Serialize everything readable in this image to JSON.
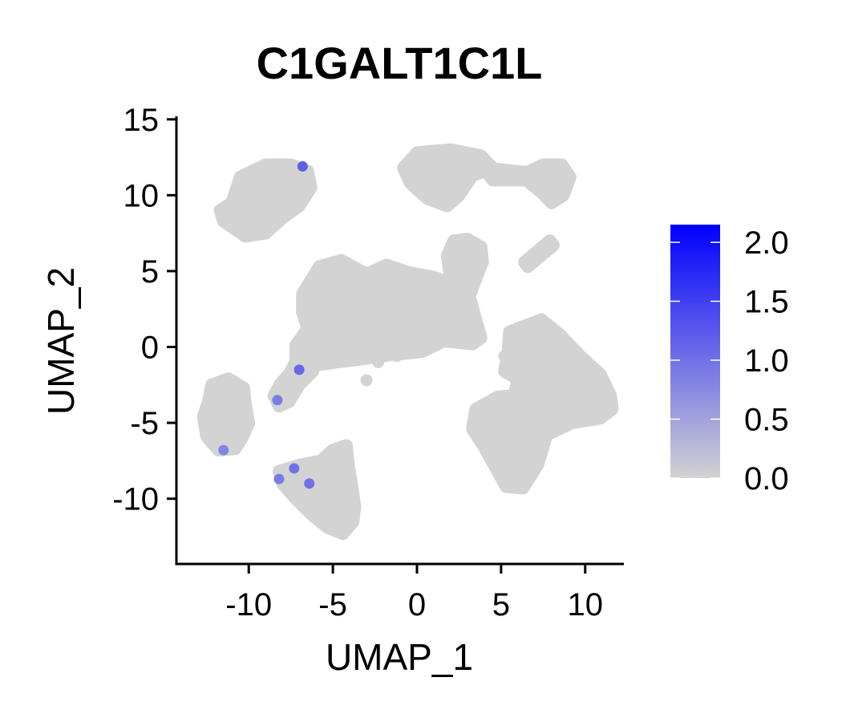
{
  "chart_data": {
    "type": "scatter",
    "title": "C1GALT1C1L",
    "xlabel": "UMAP_1",
    "ylabel": "UMAP_2",
    "xlim": [
      -14.3,
      12.3
    ],
    "ylim": [
      -14.3,
      15.2
    ],
    "x_ticks": [
      -10,
      -5,
      0,
      5,
      10
    ],
    "x_tick_labels": [
      "-10",
      "-5",
      "0",
      "5",
      "10"
    ],
    "y_ticks": [
      -10,
      -5,
      0,
      5,
      10,
      15
    ],
    "y_tick_labels": [
      "-10",
      "-5",
      "0",
      "5",
      "10",
      "15"
    ],
    "grid": false,
    "background_color": "#d3d3d3",
    "colorbar": {
      "min": 0.0,
      "max": 2.15,
      "low_color": "#d3d3d3",
      "high_color": "#0000ff",
      "ticks": [
        0.0,
        0.5,
        1.0,
        1.5,
        2.0
      ],
      "tick_labels": [
        "0.0",
        "0.5",
        "1.0",
        "1.5",
        "2.0"
      ],
      "placement": "right"
    },
    "clusters": [
      {
        "name": "top-left",
        "outline": [
          [
            -11,
            9.5
          ],
          [
            -10.5,
            11.2
          ],
          [
            -9,
            12
          ],
          [
            -7.5,
            12
          ],
          [
            -6.5,
            11.6
          ],
          [
            -6.3,
            10.5
          ],
          [
            -7,
            9.3
          ],
          [
            -8,
            8.5
          ],
          [
            -9,
            7.5
          ],
          [
            -10.2,
            7.3
          ],
          [
            -11.5,
            8.3
          ],
          [
            -11.7,
            9
          ]
        ]
      },
      {
        "name": "top-right-a",
        "outline": [
          [
            -0.8,
            11.8
          ],
          [
            0,
            12.8
          ],
          [
            2,
            13
          ],
          [
            3.8,
            12.6
          ],
          [
            4.5,
            11.8
          ],
          [
            3.3,
            11.3
          ],
          [
            2.5,
            10
          ],
          [
            1.8,
            9.3
          ],
          [
            0.6,
            9.8
          ],
          [
            -0.4,
            10.8
          ]
        ]
      },
      {
        "name": "top-right-b",
        "outline": [
          [
            4,
            11.8
          ],
          [
            6.5,
            11.5
          ],
          [
            7.5,
            12
          ],
          [
            8.6,
            12
          ],
          [
            9.1,
            11.2
          ],
          [
            8.7,
            10
          ],
          [
            8,
            9.5
          ],
          [
            7.4,
            10.2
          ],
          [
            6.5,
            11
          ],
          [
            4.5,
            11
          ]
        ]
      },
      {
        "name": "small-strip",
        "outline": [
          [
            6.4,
            5.6
          ],
          [
            7.9,
            7
          ],
          [
            8.1,
            6.7
          ],
          [
            6.6,
            5.3
          ]
        ]
      },
      {
        "name": "upper-island",
        "outline": [
          [
            1.8,
            6
          ],
          [
            2.2,
            7
          ],
          [
            3,
            7.1
          ],
          [
            3.8,
            6.6
          ],
          [
            3.9,
            5.6
          ],
          [
            3.6,
            4.8
          ],
          [
            3,
            3
          ],
          [
            2.4,
            3.2
          ],
          [
            2,
            4.5
          ]
        ]
      },
      {
        "name": "center-main",
        "outline": [
          [
            -6.8,
            3.5
          ],
          [
            -5.8,
            5.3
          ],
          [
            -4.5,
            5.7
          ],
          [
            -3,
            4.8
          ],
          [
            -1.8,
            5.4
          ],
          [
            -0.5,
            4.9
          ],
          [
            1,
            4.6
          ],
          [
            2.5,
            4
          ],
          [
            3.2,
            3
          ],
          [
            3.5,
            1.8
          ],
          [
            3.8,
            0.6
          ],
          [
            3.3,
            0.2
          ],
          [
            1.6,
            0.4
          ],
          [
            0.3,
            -0.3
          ],
          [
            -1.5,
            -0.5
          ],
          [
            -3.3,
            -0.8
          ],
          [
            -4.8,
            -1
          ],
          [
            -6,
            -1.2
          ],
          [
            -7.2,
            -0.8
          ],
          [
            -7.2,
            0.1
          ],
          [
            -6.5,
            1.2
          ],
          [
            -6.8,
            2.3
          ]
        ]
      },
      {
        "name": "left-tail",
        "outline": [
          [
            -7.2,
            -1
          ],
          [
            -6.5,
            -0.5
          ],
          [
            -6.2,
            -1.6
          ],
          [
            -7,
            -2.5
          ],
          [
            -7.6,
            -3.6
          ],
          [
            -8.2,
            -3.9
          ],
          [
            -8.5,
            -3.2
          ],
          [
            -8.1,
            -2.4
          ],
          [
            -7.6,
            -1.8
          ]
        ]
      },
      {
        "name": "right-large",
        "outline": [
          [
            5.5,
            1
          ],
          [
            7.4,
            1.8
          ],
          [
            8.5,
            0.8
          ],
          [
            9.7,
            -0.6
          ],
          [
            10.9,
            -1.8
          ],
          [
            11.5,
            -3.2
          ],
          [
            11.6,
            -4.1
          ],
          [
            10.9,
            -4.7
          ],
          [
            9.2,
            -5
          ],
          [
            7.7,
            -5.8
          ],
          [
            7.2,
            -7.7
          ],
          [
            6.3,
            -9.3
          ],
          [
            5.3,
            -9.2
          ],
          [
            4.8,
            -8.2
          ],
          [
            4,
            -6.6
          ],
          [
            3.3,
            -5.4
          ],
          [
            3.5,
            -4.1
          ],
          [
            4.8,
            -3.3
          ],
          [
            5.8,
            -3.2
          ],
          [
            6,
            -2.1
          ],
          [
            5.2,
            -1.6
          ],
          [
            5.4,
            -0.5
          ]
        ]
      },
      {
        "name": "left-small",
        "outline": [
          [
            -12.2,
            -2.5
          ],
          [
            -11.2,
            -2.1
          ],
          [
            -10.3,
            -2.7
          ],
          [
            -10.2,
            -3.8
          ],
          [
            -10,
            -5
          ],
          [
            -10.4,
            -6
          ],
          [
            -10.8,
            -6.7
          ],
          [
            -11.8,
            -6.8
          ],
          [
            -12.5,
            -5.9
          ],
          [
            -12.7,
            -4.6
          ],
          [
            -12.4,
            -3.6
          ]
        ]
      },
      {
        "name": "bottom-left",
        "outline": [
          [
            -8.2,
            -8.2
          ],
          [
            -7,
            -7.8
          ],
          [
            -5.7,
            -7.5
          ],
          [
            -5,
            -6.8
          ],
          [
            -4.2,
            -6.5
          ],
          [
            -4.1,
            -7.6
          ],
          [
            -3.9,
            -9
          ],
          [
            -3.7,
            -10.5
          ],
          [
            -3.8,
            -11.5
          ],
          [
            -4.4,
            -12.3
          ],
          [
            -5.3,
            -11.9
          ],
          [
            -6.2,
            -11.1
          ],
          [
            -7.2,
            -10
          ],
          [
            -8,
            -9
          ]
        ]
      }
    ],
    "points": [
      {
        "x": -6.4,
        "y": -9.0,
        "value": 1.0
      },
      {
        "x": -7.3,
        "y": -8.0,
        "value": 1.0
      },
      {
        "x": -8.2,
        "y": -8.7,
        "value": 0.9
      },
      {
        "x": -7.0,
        "y": -1.5,
        "value": 1.1
      },
      {
        "x": -8.3,
        "y": -3.5,
        "value": 0.9
      },
      {
        "x": -11.5,
        "y": -6.8,
        "value": 0.8
      },
      {
        "x": -6.8,
        "y": 11.9,
        "value": 1.2
      },
      {
        "x": -3.0,
        "y": -2.2,
        "value": 0.0
      },
      {
        "x": -2.3,
        "y": -1.0,
        "value": 0.0
      },
      {
        "x": 6.8,
        "y": -0.8,
        "value": 0.0
      },
      {
        "x": -1.2,
        "y": -0.6,
        "value": 0.0
      },
      {
        "x": 2.0,
        "y": 0.8,
        "value": 0.0
      },
      {
        "x": 5.2,
        "y": -0.6,
        "value": 0.0
      }
    ]
  }
}
